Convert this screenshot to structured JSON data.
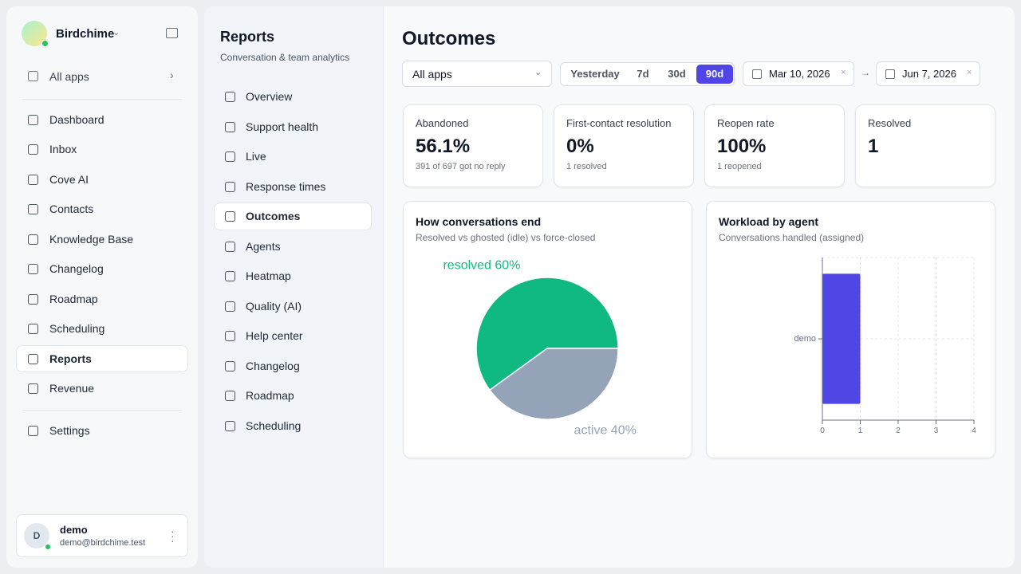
{
  "sidebar": {
    "brand": "Birdchime",
    "all_apps": "All apps",
    "nav": [
      "Dashboard",
      "Inbox",
      "Cove AI",
      "Contacts",
      "Knowledge Base",
      "Changelog",
      "Roadmap",
      "Scheduling",
      "Reports",
      "Revenue"
    ],
    "settings": "Settings",
    "user": {
      "initial": "D",
      "name": "demo",
      "email": "demo@birdchime.test"
    }
  },
  "subnav": {
    "title": "Reports",
    "subtitle": "Conversation & team analytics",
    "items": [
      "Overview",
      "Support health",
      "Live",
      "Response times",
      "Outcomes",
      "Agents",
      "Heatmap",
      "Quality (AI)",
      "Help center",
      "Changelog",
      "Roadmap",
      "Scheduling"
    ]
  },
  "main": {
    "title": "Outcomes",
    "filters": {
      "app": "All apps",
      "ranges": [
        "Yesterday",
        "7d",
        "30d",
        "90d"
      ],
      "from": "Mar 10, 2026",
      "to": "Jun 7, 2026"
    },
    "stats": [
      {
        "label": "Abandoned",
        "value": "56.1%",
        "note": "391 of 697 got no reply"
      },
      {
        "label": "First-contact resolution",
        "value": "0%",
        "note": "1 resolved"
      },
      {
        "label": "Reopen rate",
        "value": "100%",
        "note": "1 reopened"
      },
      {
        "label": "Resolved",
        "value": "1"
      }
    ]
  },
  "chart_data": [
    {
      "type": "pie",
      "title": "How conversations end",
      "subtitle": "Resolved vs ghosted (idle) vs force-closed",
      "categories": [
        "resolved",
        "active"
      ],
      "values": [
        60,
        40
      ],
      "value_labels": [
        "60%",
        "40%"
      ],
      "colors": [
        "#10b981",
        "#94a3b8"
      ]
    },
    {
      "type": "bar",
      "orientation": "horizontal",
      "title": "Workload by agent",
      "subtitle": "Conversations handled (assigned)",
      "categories": [
        "demo"
      ],
      "values": [
        1
      ],
      "color": "#4f46e5",
      "xlim": [
        0,
        4
      ],
      "xticks": [
        0,
        1,
        2,
        3,
        4
      ],
      "grid": true
    }
  ]
}
